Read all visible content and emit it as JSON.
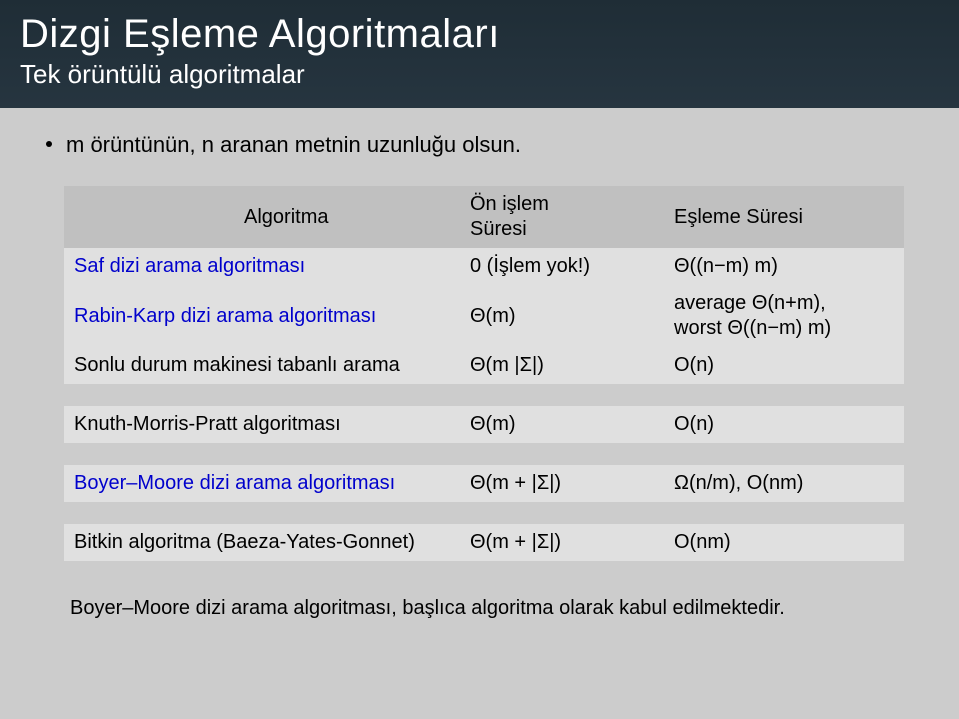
{
  "header": {
    "title": "Dizgi Eşleme Algoritmaları",
    "subtitle": "Tek örüntülü algoritmalar"
  },
  "intro": "m örüntünün, n aranan metnin uzunluğu olsun.",
  "table": {
    "headers": {
      "algo": "Algoritma",
      "pre": "Ön işlem Süresi",
      "match": "Eşleme Süresi"
    },
    "rows": [
      {
        "algo": "Saf dizi arama algoritması",
        "algo_link": true,
        "pre": "0 (İşlem yok!)",
        "match": "Θ((n−m) m)",
        "gap_after": false
      },
      {
        "algo": "Rabin-Karp dizi arama algoritması",
        "algo_link": true,
        "pre": "Θ(m)",
        "match": "average Θ(n+m),\nworst Θ((n−m) m)",
        "gap_after": false
      },
      {
        "algo": "Sonlu durum makinesi tabanlı arama",
        "algo_link": false,
        "pre": "Θ(m |Σ|)",
        "match": "O(n)",
        "gap_after": true
      },
      {
        "algo": "Knuth-Morris-Pratt algoritması",
        "algo_link": false,
        "pre": "Θ(m)",
        "match": "O(n)",
        "gap_after": true
      },
      {
        "algo": "Boyer–Moore dizi arama algoritması",
        "algo_link": true,
        "pre": "Θ(m + |Σ|)",
        "match": "Ω(n/m), O(nm)",
        "gap_after": true
      },
      {
        "algo": "Bitkin algoritma (Baeza-Yates-Gonnet)",
        "algo_link": false,
        "pre": "Θ(m + |Σ|)",
        "match": "O(nm)",
        "gap_after": false
      }
    ]
  },
  "footnote": "Boyer–Moore dizi arama algoritması, başlıca algoritma olarak kabul edilmektedir."
}
